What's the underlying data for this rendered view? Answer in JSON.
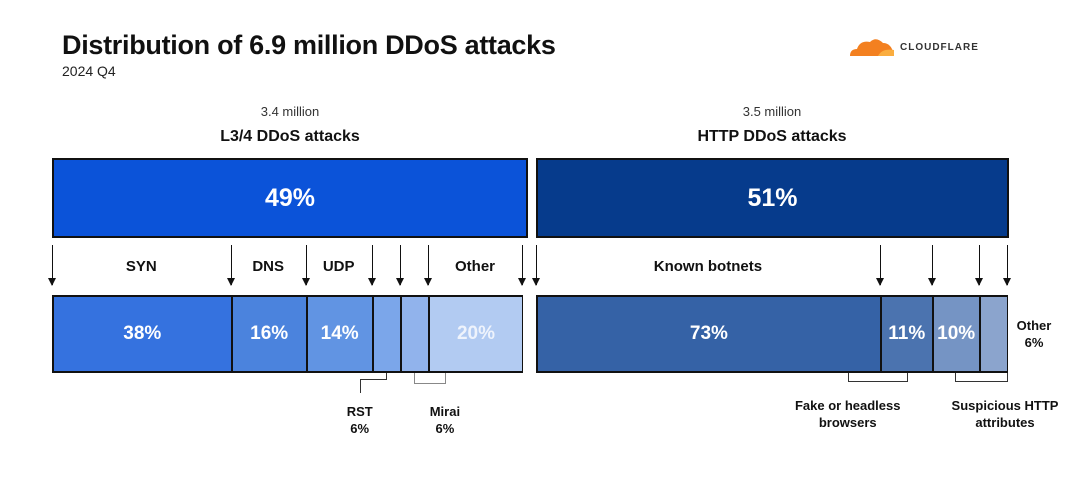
{
  "title": "Distribution of 6.9 million DDoS attacks",
  "subtitle": "2024 Q4",
  "logo_text": "CLOUDFLARE",
  "chart_data": {
    "type": "stacked-bar",
    "title": "Distribution of 6.9 million DDoS attacks",
    "subtitle": "2024 Q4",
    "groups": [
      {
        "name": "L3/4 DDoS attacks",
        "count": "3.4 million",
        "share": 49,
        "share_label": "49%",
        "color": "#0b53d9",
        "segments": [
          {
            "name": "SYN",
            "value": 38,
            "label": "38%",
            "color": "#3572df"
          },
          {
            "name": "DNS",
            "value": 16,
            "label": "16%",
            "color": "#4b83dd"
          },
          {
            "name": "UDP",
            "value": 14,
            "label": "14%",
            "color": "#6194e3"
          },
          {
            "name": "RST",
            "value": 6,
            "label": "6%",
            "color": "#7ba6ea"
          },
          {
            "name": "Mirai",
            "value": 6,
            "label": "6%",
            "color": "#91b3ec"
          },
          {
            "name": "Other",
            "value": 20,
            "label": "20%",
            "color": "#b2cbf2"
          }
        ]
      },
      {
        "name": "HTTP DDoS attacks",
        "count": "3.5 million",
        "share": 51,
        "share_label": "51%",
        "color": "#063b8c",
        "segments": [
          {
            "name": "Known botnets",
            "value": 73,
            "label": "73%",
            "color": "#3562a6"
          },
          {
            "name": "Fake or headless browsers",
            "value": 11,
            "label": "11%",
            "color": "#4b73af"
          },
          {
            "name": "Suspicious HTTP attributes",
            "value": 10,
            "label": "10%",
            "color": "#7594c4"
          },
          {
            "name": "Other",
            "value": 6,
            "label": "6%",
            "color": "#8ba4cd"
          }
        ]
      }
    ]
  }
}
